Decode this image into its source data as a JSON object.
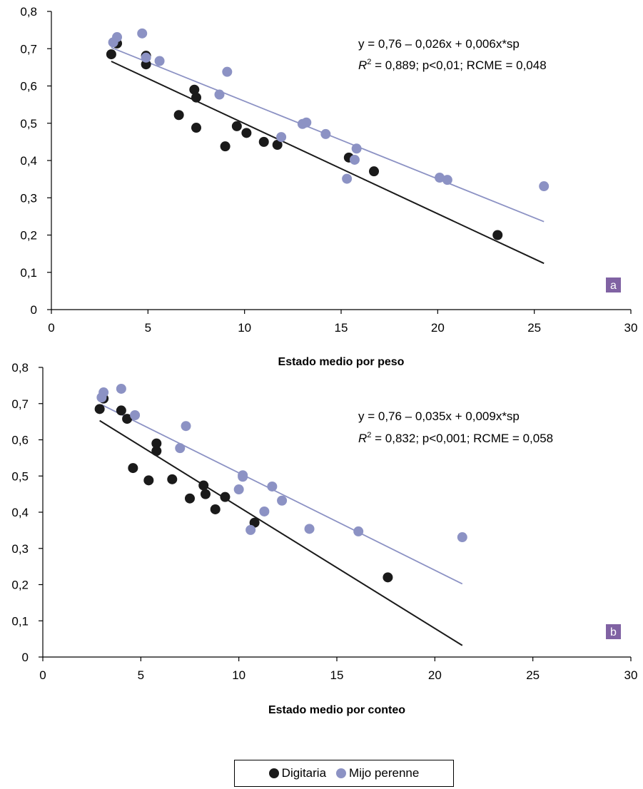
{
  "colors": {
    "digitaria": "#1a1a1a",
    "mijo": "#8c92c4",
    "badge": "#8062a3"
  },
  "legend": [
    {
      "name": "Digitaria",
      "color": "#1a1a1a"
    },
    {
      "name": "Mijo perenne",
      "color": "#8c92c4"
    }
  ],
  "chart_data": [
    {
      "type": "scatter",
      "panel_label": "a",
      "xlabel": "Estado medio por peso",
      "ylabel": "",
      "xlim": [
        0,
        30
      ],
      "ylim": [
        0,
        0.8
      ],
      "x_ticks": [
        "0",
        "5",
        "10",
        "15",
        "20",
        "25",
        "30"
      ],
      "y_ticks": [
        "0",
        "0,1",
        "0,2",
        "0,3",
        "0,4",
        "0,5",
        "0,6",
        "0,7",
        "0,8"
      ],
      "equation_line1": "y = 0,76 – 0,026x + 0,006x*sp",
      "r2_symbol": "R",
      "r2_sup": "2",
      "equation_line2_rest": " = 0,889; p<0,01; RCME = 0,048",
      "series": [
        {
          "name": "Digitaria",
          "color": "#1a1a1a",
          "points": [
            [
              3.1,
              0.685
            ],
            [
              3.4,
              0.714
            ],
            [
              4.9,
              0.681
            ],
            [
              4.9,
              0.658
            ],
            [
              6.6,
              0.522
            ],
            [
              7.4,
              0.59
            ],
            [
              7.5,
              0.569
            ],
            [
              7.5,
              0.488
            ],
            [
              9.0,
              0.438
            ],
            [
              9.6,
              0.492
            ],
            [
              10.1,
              0.474
            ],
            [
              11.0,
              0.45
            ],
            [
              11.7,
              0.442
            ],
            [
              15.4,
              0.408
            ],
            [
              16.7,
              0.371
            ],
            [
              23.1,
              0.2
            ]
          ],
          "trend": [
            [
              3.1,
              0.666
            ],
            [
              25.5,
              0.124
            ]
          ]
        },
        {
          "name": "Mijo perenne",
          "color": "#8c92c4",
          "points": [
            [
              3.2,
              0.717
            ],
            [
              3.4,
              0.731
            ],
            [
              4.7,
              0.741
            ],
            [
              4.9,
              0.676
            ],
            [
              5.6,
              0.667
            ],
            [
              8.7,
              0.577
            ],
            [
              9.1,
              0.638
            ],
            [
              11.9,
              0.463
            ],
            [
              13.0,
              0.498
            ],
            [
              13.2,
              0.502
            ],
            [
              14.2,
              0.471
            ],
            [
              15.3,
              0.351
            ],
            [
              15.7,
              0.402
            ],
            [
              15.8,
              0.432
            ],
            [
              20.1,
              0.354
            ],
            [
              20.5,
              0.348
            ],
            [
              25.5,
              0.331
            ]
          ],
          "trend": [
            [
              3.1,
              0.703
            ],
            [
              25.5,
              0.236
            ]
          ]
        }
      ]
    },
    {
      "type": "scatter",
      "panel_label": "b",
      "xlabel": "Estado medio por conteo",
      "ylabel": "",
      "xlim": [
        0,
        30
      ],
      "ylim": [
        0,
        0.8
      ],
      "x_ticks": [
        "0",
        "5",
        "10",
        "15",
        "20",
        "25",
        "30"
      ],
      "y_ticks": [
        "0",
        "0,1",
        "0,2",
        "0,3",
        "0,4",
        "0,5",
        "0,6",
        "0,7",
        "0,8"
      ],
      "equation_line1": "y = 0,76 – 0,035x + 0,009x*sp",
      "r2_symbol": "R",
      "r2_sup": "2",
      "equation_line2_rest": " = 0,832; p<0,001; RCME = 0,058",
      "series": [
        {
          "name": "Digitaria",
          "color": "#1a1a1a",
          "points": [
            [
              2.9,
              0.685
            ],
            [
              3.1,
              0.714
            ],
            [
              4.0,
              0.681
            ],
            [
              4.3,
              0.658
            ],
            [
              4.6,
              0.522
            ],
            [
              5.4,
              0.488
            ],
            [
              5.8,
              0.59
            ],
            [
              5.8,
              0.569
            ],
            [
              6.6,
              0.491
            ],
            [
              7.5,
              0.438
            ],
            [
              8.2,
              0.474
            ],
            [
              8.3,
              0.45
            ],
            [
              8.8,
              0.408
            ],
            [
              9.3,
              0.442
            ],
            [
              10.8,
              0.371
            ],
            [
              17.6,
              0.22
            ]
          ],
          "trend": [
            [
              2.9,
              0.653
            ],
            [
              21.4,
              0.032
            ]
          ]
        },
        {
          "name": "Mijo perenne",
          "color": "#8c92c4",
          "points": [
            [
              3.0,
              0.717
            ],
            [
              3.1,
              0.731
            ],
            [
              4.0,
              0.741
            ],
            [
              4.7,
              0.668
            ],
            [
              7.0,
              0.577
            ],
            [
              7.3,
              0.638
            ],
            [
              10.0,
              0.463
            ],
            [
              10.2,
              0.498
            ],
            [
              10.2,
              0.502
            ],
            [
              10.6,
              0.351
            ],
            [
              11.3,
              0.402
            ],
            [
              11.7,
              0.471
            ],
            [
              12.2,
              0.432
            ],
            [
              13.6,
              0.354
            ],
            [
              16.1,
              0.347
            ],
            [
              21.4,
              0.331
            ]
          ],
          "trend": [
            [
              3.0,
              0.697
            ],
            [
              21.4,
              0.202
            ]
          ]
        }
      ]
    }
  ]
}
